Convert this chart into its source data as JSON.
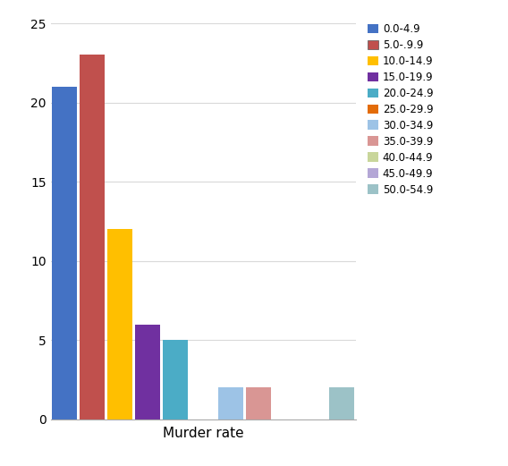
{
  "categories": [
    "0.0-4.9",
    "5.0-.9.9",
    "10.0-14.9",
    "15.0-19.9",
    "20.0-24.9",
    "25.0-29.9",
    "30.0-34.9",
    "35.0-39.9",
    "40.0-44.9",
    "45.0-49.9",
    "50.0-54.9"
  ],
  "legend_labels": [
    "0.0-4.9",
    "5.0-.9.9",
    "10.0-14.9",
    "15.0-19.9",
    "20.0-24.9",
    "25.0-29.9",
    "30.0-34.9",
    "35.0-39.9",
    "40.0-44.9",
    "45.0-49.9",
    "50.0-54.9"
  ],
  "values": [
    21,
    23,
    12,
    6,
    5,
    0,
    2,
    2,
    0,
    0,
    2
  ],
  "colors": [
    "#4472c4",
    "#c0504d",
    "#ffbf00",
    "#7030a0",
    "#4bacc6",
    "#e36c09",
    "#9dc3e6",
    "#d99694",
    "#c9d69b",
    "#b4a7d6",
    "#9cc2c7"
  ],
  "xlabel": "Murder rate",
  "ylim": [
    0,
    25
  ],
  "yticks": [
    0,
    5,
    10,
    15,
    20,
    25
  ],
  "background_color": "#ffffff",
  "grid_color": "#d9d9d9",
  "figsize": [
    5.68,
    5.21
  ],
  "dpi": 100
}
